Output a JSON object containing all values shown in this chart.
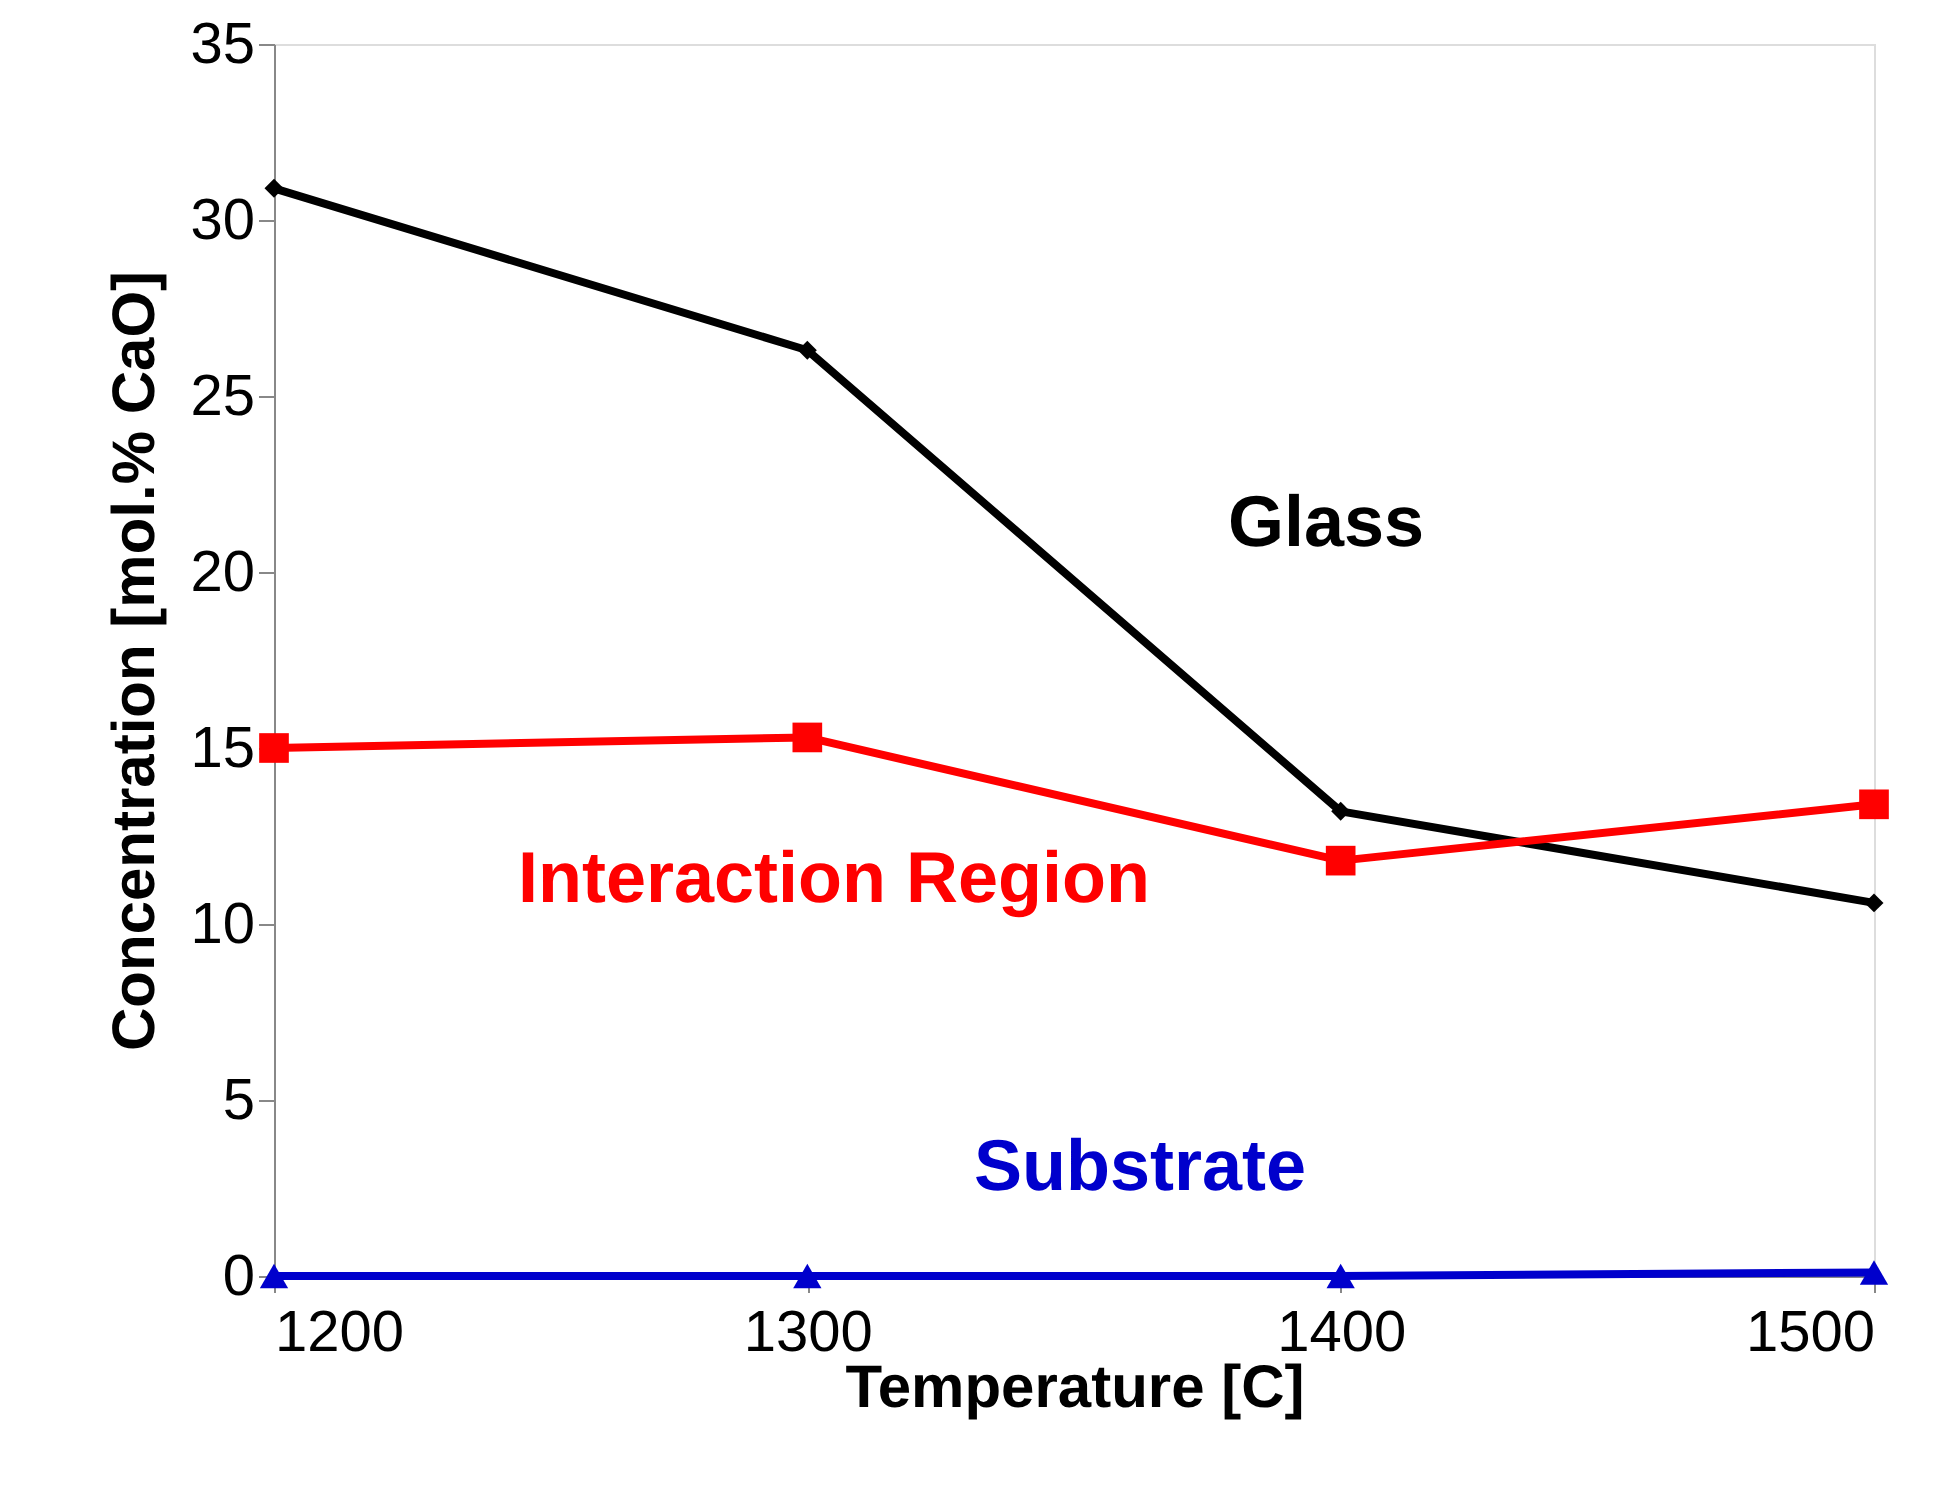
{
  "chart_data": {
    "type": "line",
    "xlabel": "Temperature [C]",
    "ylabel": "Concentration [mol.% CaO]",
    "x": [
      1200,
      1300,
      1400,
      1500
    ],
    "xlim": [
      1200,
      1500
    ],
    "xticks": [
      1200,
      1300,
      1400,
      1500
    ],
    "ylim": [
      0,
      35
    ],
    "yticks": [
      0,
      5,
      10,
      15,
      20,
      25,
      30,
      35
    ],
    "grid": false,
    "line_style": "solid",
    "series": [
      {
        "name": "Glass",
        "color": "#000000",
        "marker": "diamond",
        "values": [
          30.9,
          26.3,
          13.2,
          10.6
        ]
      },
      {
        "name": "Interaction Region",
        "color": "#ff0000",
        "marker": "square",
        "values": [
          15.0,
          15.3,
          11.8,
          13.4
        ]
      },
      {
        "name": "Substrate",
        "color": "#0000cc",
        "marker": "triangle",
        "values": [
          0,
          0,
          0,
          0.1
        ]
      }
    ]
  }
}
